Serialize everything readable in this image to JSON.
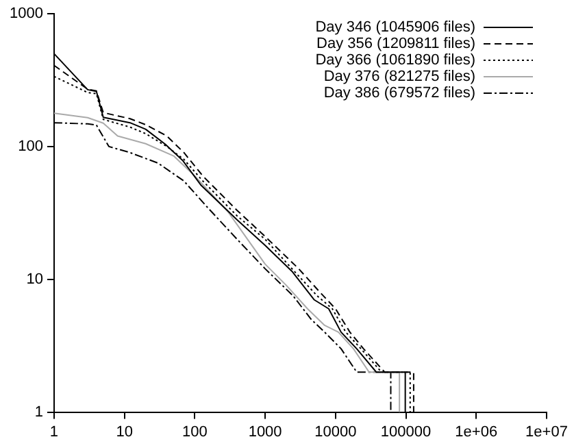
{
  "chart_data": {
    "type": "line",
    "log": "xy",
    "grid": false,
    "legend": "top right",
    "marker": "none",
    "xlim": [
      1,
      10000000
    ],
    "xticks": [
      1,
      10,
      100,
      1000,
      10000,
      100000,
      {
        "value": 1000000,
        "label": "1e+06"
      },
      {
        "value": 10000000,
        "label": "1e+07"
      }
    ],
    "ylim": [
      1,
      1000
    ],
    "yticks": [
      1,
      10,
      100,
      1000
    ],
    "series": [
      {
        "name": "Day 346 (1045906 files)",
        "color": "#000000",
        "line_style": "solid",
        "x": [
          1,
          3,
          4,
          5,
          12,
          20,
          38,
          68,
          123,
          400,
          1000,
          2400,
          5000,
          8000,
          12000,
          20000,
          38000,
          98000,
          98000
        ],
        "values": [
          500,
          268,
          260,
          166,
          151,
          135,
          104,
          78,
          51,
          28,
          18,
          11.5,
          7,
          6,
          4,
          3,
          2,
          2,
          1
        ]
      },
      {
        "name": "Day 356 (1209811 files)",
        "color": "#000000",
        "line_style": "dashed",
        "x": [
          1,
          3,
          4,
          5,
          12,
          20,
          40,
          70,
          130,
          400,
          1000,
          3000,
          6000,
          10000,
          16000,
          25000,
          50000,
          129000,
          129000
        ],
        "values": [
          408,
          270,
          262,
          180,
          162,
          146,
          120,
          90,
          60,
          33,
          21,
          12,
          8,
          6,
          4,
          3,
          2,
          2,
          1
        ]
      },
      {
        "name": "Day 366 (1061890 files)",
        "color": "#000000",
        "line_style": "dotted",
        "x": [
          1,
          3,
          4,
          5,
          12,
          20,
          40,
          70,
          130,
          400,
          1000,
          2800,
          5500,
          9000,
          14000,
          23000,
          45000,
          115000,
          115000
        ],
        "values": [
          337,
          255,
          250,
          160,
          140,
          125,
          100,
          80,
          55,
          30,
          20,
          11,
          7.5,
          6,
          4,
          3,
          2,
          2,
          1
        ]
      },
      {
        "name": "Day 376 (821275 files)",
        "color": "#aaaaaa",
        "line_style": "solid",
        "x": [
          1,
          3,
          5,
          8,
          20,
          50,
          100,
          300,
          1000,
          2000,
          4000,
          7000,
          11000,
          18000,
          30000,
          81000,
          81000
        ],
        "values": [
          178,
          165,
          150,
          120,
          105,
          85,
          60,
          32,
          13,
          9,
          6,
          4.5,
          4,
          3,
          2,
          2,
          1
        ]
      },
      {
        "name": "Day 386 (679572 files)",
        "color": "#000000",
        "line_style": "dashdot",
        "x": [
          1,
          3,
          4,
          6,
          12,
          30,
          70,
          150,
          400,
          1000,
          2500,
          4500,
          7000,
          12000,
          20000,
          61000,
          61000
        ],
        "values": [
          151,
          148,
          145,
          100,
          90,
          75,
          55,
          35,
          20,
          12,
          7.5,
          5,
          4,
          3,
          2,
          2,
          1
        ]
      }
    ]
  }
}
